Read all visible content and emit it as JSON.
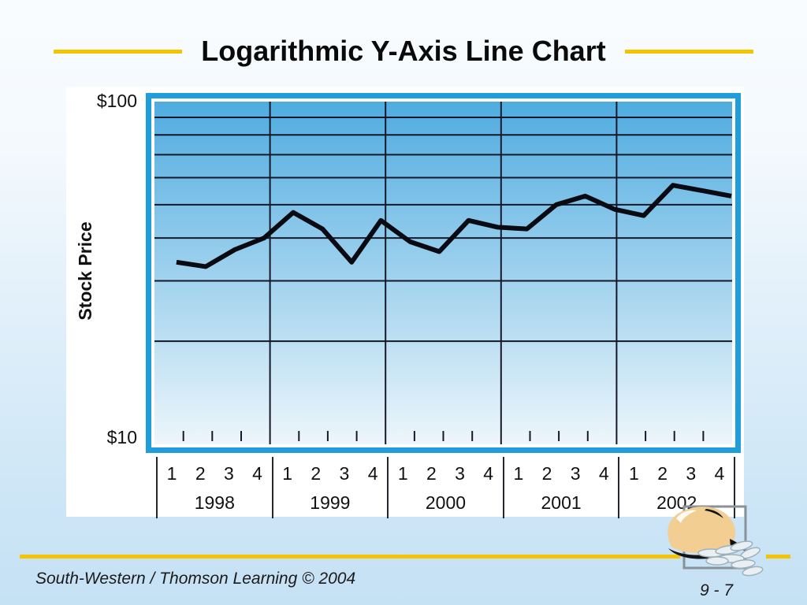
{
  "slide": {
    "title": "Logarithmic Y-Axis Line Chart",
    "footer": "South-Western / Thomson Learning © 2004",
    "page_number": "9 - 7"
  },
  "colors": {
    "accent_yellow": "#f5c400",
    "frame_blue": "#1f9ed9",
    "plot_gradient_top": "#4face0",
    "plot_gradient_bottom": "#edf6fb",
    "grid": "#16182a",
    "line": "#0a0a12",
    "slide_bg_top": "#f9fcfe",
    "slide_bg_bottom": "#c5e1f4"
  },
  "icons": [
    {
      "name": "money-bag-with-coins-icon",
      "description": "tan money bag spilling silver coins over a gray square bracket"
    }
  ],
  "chart_data": {
    "type": "line",
    "title": "Logarithmic Y-Axis Line Chart",
    "xlabel": "",
    "ylabel": "Stock Price",
    "y_axis": {
      "scale": "log",
      "min": 10,
      "max": 100,
      "top_label": "$100",
      "bottom_label": "$10",
      "gridline_values": [
        20,
        30,
        40,
        50,
        60,
        70,
        80,
        90
      ]
    },
    "x_axis": {
      "years": [
        "1998",
        "1999",
        "2000",
        "2001",
        "2002"
      ],
      "quarter_labels": [
        "1",
        "2",
        "3",
        "4"
      ],
      "quarter_ticks_per_year": 4
    },
    "grid": "on",
    "legend": "none",
    "series": [
      {
        "name": "Stock Price ($, quarterly 1998Q1-2002Q4)",
        "values": [
          34,
          33,
          37,
          40,
          47.5,
          42.5,
          34,
          45,
          39,
          36.5,
          45,
          43,
          42.5,
          50,
          53,
          48.5,
          46.5,
          57,
          55,
          53
        ]
      }
    ]
  }
}
